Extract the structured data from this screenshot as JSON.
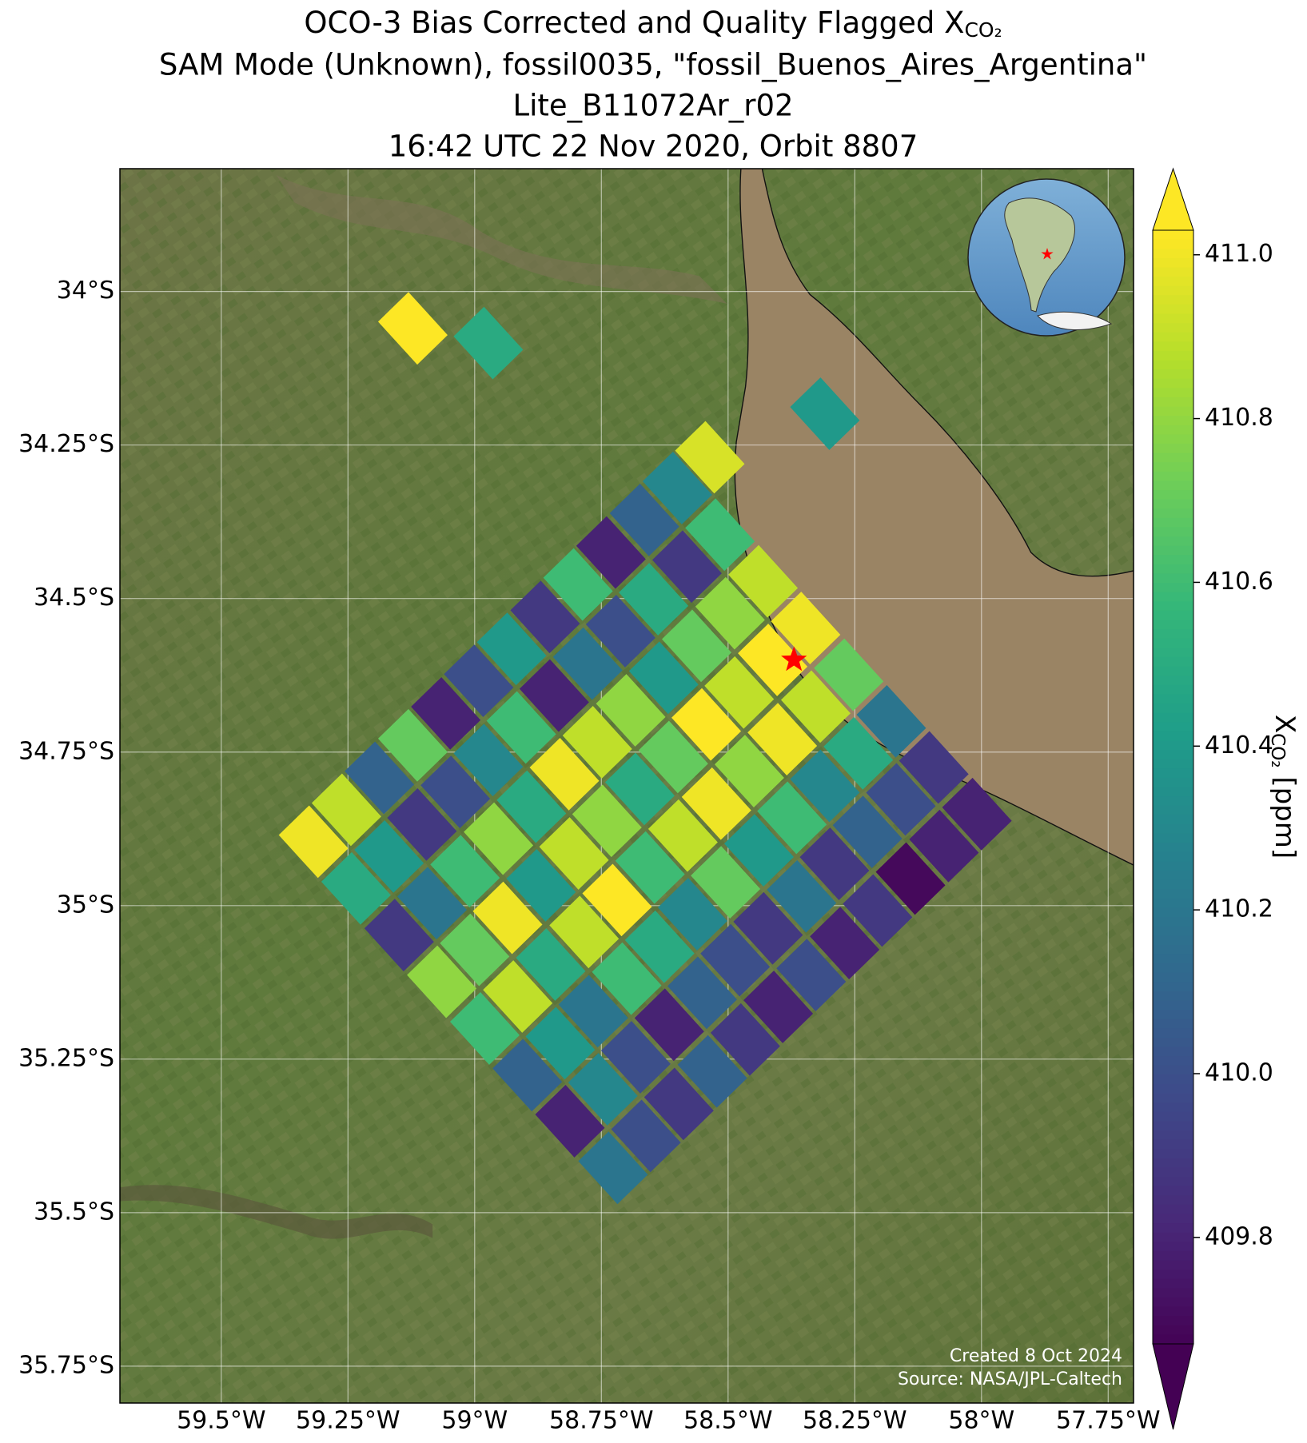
{
  "chart_data": {
    "type": "footprint-map",
    "title": {
      "main": "OCO-3 Bias Corrected and Quality Flagged X",
      "sub": "CO₂"
    },
    "subtitle": [
      "SAM Mode (Unknown), fossil0035, \"fossil_Buenos_Aires_Argentina\"",
      "Lite_B11072Ar_r02",
      "16:42 UTC 22 Nov 2020, Orbit 8807"
    ],
    "xlim": [
      -59.7,
      -57.7
    ],
    "ylim": [
      -35.81,
      -33.8
    ],
    "xticks": [
      {
        "value": -59.5,
        "label": "59.5°W"
      },
      {
        "value": -59.25,
        "label": "59.25°W"
      },
      {
        "value": -59,
        "label": "59°W"
      },
      {
        "value": -58.75,
        "label": "58.75°W"
      },
      {
        "value": -58.5,
        "label": "58.5°W"
      },
      {
        "value": -58.25,
        "label": "58.25°W"
      },
      {
        "value": -58,
        "label": "58°W"
      },
      {
        "value": -57.75,
        "label": "57.75°W"
      }
    ],
    "yticks": [
      {
        "value": -34,
        "label": "34°S"
      },
      {
        "value": -34.25,
        "label": "34.25°S"
      },
      {
        "value": -34.5,
        "label": "34.5°S"
      },
      {
        "value": -34.75,
        "label": "34.75°S"
      },
      {
        "value": -35,
        "label": "35°S"
      },
      {
        "value": -35.25,
        "label": "35.25°S"
      },
      {
        "value": -35.5,
        "label": "35.5°S"
      },
      {
        "value": -35.75,
        "label": "35.75°S"
      }
    ],
    "grid": true,
    "colormap": "viridis",
    "clim": [
      409.67,
      411.03
    ],
    "cticks": [
      409.8,
      {
        "value": 410.0,
        "label": "410.0"
      },
      410.2,
      410.4,
      410.6,
      410.8,
      {
        "value": 411.0,
        "label": "411.0"
      }
    ],
    "colorbar_label": {
      "main": "X",
      "sub": "CO₂",
      "unit": " [ppm]"
    },
    "target": {
      "lon": -58.37,
      "lat": -34.6,
      "color": "#ff0000"
    },
    "soundings": {
      "lon": [
        -58.6,
        -58.516,
        -58.431,
        -58.347,
        -58.262,
        -58.178,
        -58.094,
        -58.009,
        -58.665,
        -58.581,
        -58.496,
        -58.412,
        -58.327,
        -58.243,
        -58.159,
        -58.074,
        -58.731,
        -58.647,
        -58.562,
        -58.478,
        -58.393,
        -58.309,
        -58.225,
        -58.14,
        -58.796,
        -58.712,
        -58.627,
        -58.543,
        -58.458,
        -58.374,
        -58.29,
        -58.205,
        -58.861,
        -58.777,
        -58.692,
        -58.608,
        -58.523,
        -58.439,
        -58.355,
        -58.27,
        -58.927,
        -58.843,
        -58.758,
        -58.674,
        -58.589,
        -58.505,
        -58.421,
        -58.336,
        -58.992,
        -58.908,
        -58.823,
        -58.739,
        -58.654,
        -58.57,
        -58.486,
        -58.401,
        -59.057,
        -58.973,
        -58.888,
        -58.804,
        -58.719,
        -58.635,
        -58.551,
        -58.466,
        -59.122,
        -59.038,
        -58.953,
        -58.869,
        -58.784,
        -58.7,
        -58.616,
        -58.531,
        -59.188,
        -59.104,
        -59.019,
        -58.935,
        -58.85,
        -58.766,
        -58.682,
        -58.597,
        -59.253,
        -59.169,
        -59.084,
        -59.0,
        -58.915,
        -58.831,
        -58.747,
        -58.662,
        -59.318,
        -59.234,
        -59.149,
        -59.065,
        -58.98,
        -58.896,
        -58.812,
        -58.727,
        -59.122,
        -58.973,
        -58.309,
        -58.536
      ],
      "lat": [
        -34.32,
        -34.396,
        -34.472,
        -34.548,
        -34.624,
        -34.7,
        -34.775,
        -34.851,
        -34.372,
        -34.448,
        -34.524,
        -34.6,
        -34.676,
        -34.752,
        -34.827,
        -34.903,
        -34.425,
        -34.501,
        -34.577,
        -34.653,
        -34.729,
        -34.805,
        -34.88,
        -34.956,
        -34.477,
        -34.553,
        -34.629,
        -34.705,
        -34.781,
        -34.857,
        -34.932,
        -35.008,
        -34.53,
        -34.606,
        -34.682,
        -34.758,
        -34.834,
        -34.91,
        -34.985,
        -35.061,
        -34.582,
        -34.658,
        -34.734,
        -34.81,
        -34.886,
        -34.962,
        -35.037,
        -35.113,
        -34.634,
        -34.71,
        -34.786,
        -34.862,
        -34.938,
        -35.014,
        -35.089,
        -35.165,
        -34.687,
        -34.763,
        -34.839,
        -34.915,
        -34.991,
        -35.067,
        -35.142,
        -35.218,
        -34.739,
        -34.815,
        -34.891,
        -34.967,
        -35.043,
        -35.119,
        -35.194,
        -35.27,
        -34.792,
        -34.868,
        -34.944,
        -35.02,
        -35.096,
        -35.172,
        -35.247,
        -35.323,
        -34.844,
        -34.92,
        -34.996,
        -35.072,
        -35.148,
        -35.224,
        -35.299,
        -35.375,
        -34.896,
        -34.972,
        -35.048,
        -35.124,
        -35.2,
        -35.276,
        -35.351,
        -35.427,
        -34.06,
        -34.084,
        -34.199,
        -34.27
      ],
      "xco2": [
        410.3,
        410.6,
        410.9,
        411.0,
        410.7,
        410.2,
        409.9,
        409.8,
        410.1,
        409.9,
        410.8,
        411.1,
        410.9,
        410.5,
        410.0,
        409.8,
        409.8,
        410.5,
        410.7,
        410.9,
        411.0,
        410.3,
        410.1,
        409.7,
        410.6,
        410.0,
        410.4,
        411.1,
        410.8,
        410.6,
        409.9,
        409.9,
        409.9,
        410.2,
        410.8,
        410.7,
        411.0,
        410.4,
        410.2,
        409.8,
        410.4,
        409.8,
        410.9,
        410.5,
        410.9,
        410.7,
        409.9,
        410.0,
        410.0,
        410.6,
        411.0,
        410.8,
        410.6,
        410.3,
        410.0,
        409.8,
        409.8,
        410.3,
        410.5,
        410.9,
        411.1,
        410.5,
        410.1,
        409.9,
        410.7,
        410.0,
        410.8,
        410.4,
        410.9,
        410.6,
        409.8,
        410.1,
        410.1,
        409.9,
        410.6,
        411.0,
        410.5,
        410.2,
        410.0,
        409.9,
        410.9,
        410.4,
        410.2,
        410.7,
        410.9,
        410.4,
        410.3,
        410.0,
        411.0,
        410.5,
        409.9,
        410.8,
        410.6,
        410.1,
        409.8,
        410.2,
        411.05,
        410.5,
        410.4,
        410.95
      ]
    },
    "credits": [
      "Created 8 Oct 2024",
      "Source: NASA/JPL-Caltech"
    ]
  }
}
